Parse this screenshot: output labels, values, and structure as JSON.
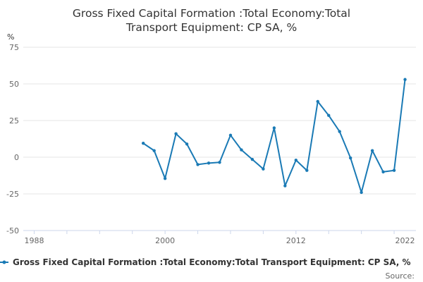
{
  "chart_data": {
    "type": "line",
    "title_line1": "Gross Fixed Capital Formation :Total Economy:Total",
    "title_line2": "Transport Equipment: CP SA, %",
    "ylabel": "%",
    "xlim": [
      1987,
      2023
    ],
    "ylim": [
      -50,
      75
    ],
    "yticks": [
      75,
      50,
      25,
      0,
      -25,
      -50
    ],
    "xticks": [
      1988,
      2000,
      2012,
      2022
    ],
    "grid": true,
    "legend_position": "bottom",
    "series": [
      {
        "name": "Gross Fixed Capital Formation :Total Economy:Total Transport Equipment: CP SA, %",
        "color": "#1a7ab5",
        "x": [
          1998,
          1999,
          2000,
          2001,
          2002,
          2003,
          2004,
          2005,
          2006,
          2007,
          2008,
          2009,
          2010,
          2011,
          2012,
          2013,
          2014,
          2015,
          2016,
          2017,
          2018,
          2019,
          2020,
          2021,
          2022
        ],
        "y": [
          9.5,
          4.5,
          -14.5,
          16,
          9,
          -5,
          -4,
          -3.5,
          15,
          5,
          -1.5,
          -8,
          20,
          -19.5,
          -2,
          -9,
          38,
          28.5,
          17.5,
          -0.5,
          -24,
          4.5,
          -10,
          -9,
          53
        ]
      }
    ],
    "source": "Source:"
  }
}
